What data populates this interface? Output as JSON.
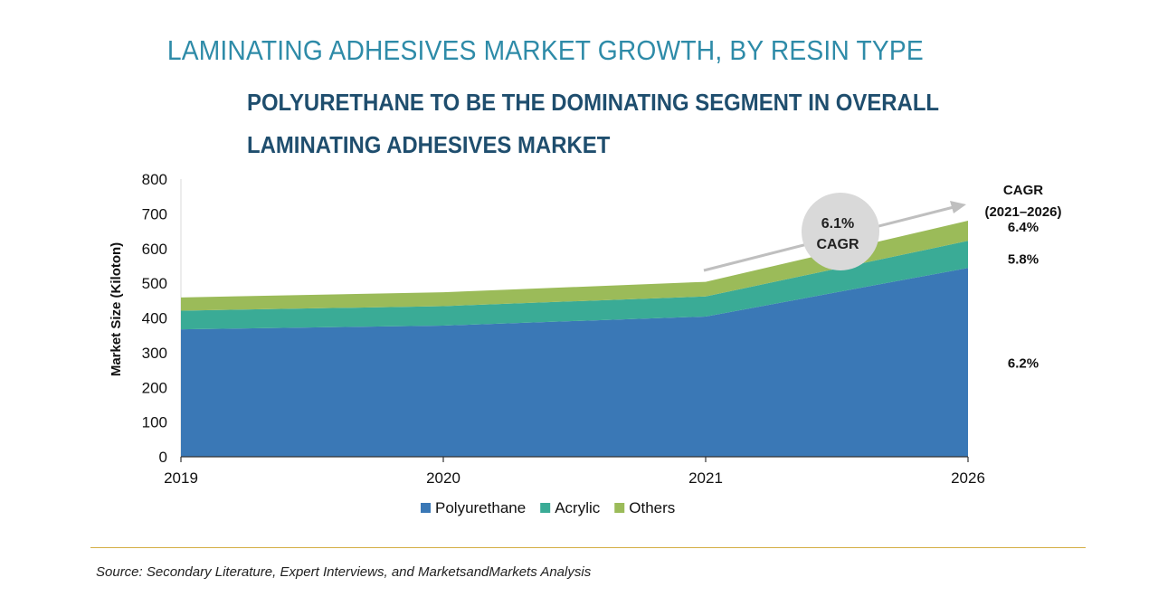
{
  "title": "LAMINATING ADHESIVES MARKET GROWTH, BY RESIN TYPE",
  "subtitle": "POLYURETHANE TO BE THE DOMINATING SEGMENT IN OVERALL LAMINATING ADHESIVES MARKET",
  "source": "Source: Secondary Literature, Expert Interviews, and MarketsandMarkets Analysis",
  "colors": {
    "polyurethane": "#3a78b6",
    "acrylic": "#3aab96",
    "others": "#9bbb59",
    "divider": "#d4ae45",
    "title": "#2e8ba8",
    "subtitle": "#1f4e6e",
    "bubble": "#d9d9d9",
    "arrow": "#bfbfbf"
  },
  "chart_data": {
    "type": "area",
    "stacked": true,
    "categories": [
      "2019",
      "2020",
      "2021",
      "2026"
    ],
    "series": [
      {
        "name": "Polyurethane",
        "values": [
          367,
          378,
          404,
          544
        ],
        "cagr": "6.2%"
      },
      {
        "name": "Acrylic",
        "values": [
          54,
          56,
          58,
          78
        ],
        "cagr": "5.8%"
      },
      {
        "name": "Others",
        "values": [
          38,
          40,
          42,
          58
        ],
        "cagr": "6.4%"
      }
    ],
    "ylabel": "Market Size (Kiloton)",
    "ylim": [
      0,
      800
    ],
    "yticks": [
      0,
      100,
      200,
      300,
      400,
      500,
      600,
      700,
      800
    ],
    "cagr_header": [
      "CAGR",
      "(2021–2026)"
    ],
    "bubble": {
      "line1": "6.1%",
      "line2": "CAGR"
    },
    "legend_position": "bottom"
  }
}
